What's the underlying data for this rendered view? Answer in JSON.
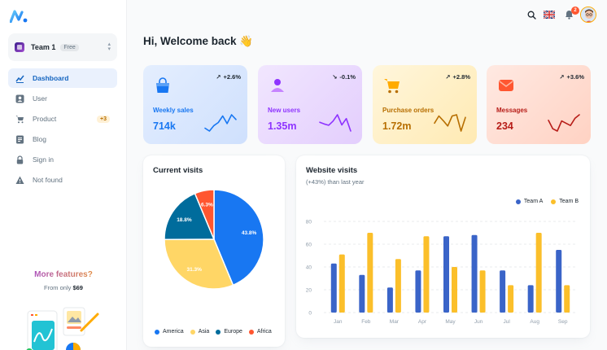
{
  "sidebar": {
    "team": {
      "name": "Team 1",
      "plan": "Free"
    },
    "items": [
      {
        "label": "Dashboard",
        "icon": "dashboard-icon",
        "active": true
      },
      {
        "label": "User",
        "icon": "user-icon"
      },
      {
        "label": "Product",
        "icon": "cart-icon",
        "badge": "+3"
      },
      {
        "label": "Blog",
        "icon": "blog-icon"
      },
      {
        "label": "Sign in",
        "icon": "lock-icon"
      },
      {
        "label": "Not found",
        "icon": "warning-icon"
      }
    ],
    "promo": {
      "title": "More features?",
      "sub_prefix": "From only",
      "price": "$69"
    }
  },
  "header": {
    "notification_count": "2"
  },
  "welcome": "Hi, Welcome back 👋",
  "stats": [
    {
      "title": "Weekly sales",
      "value": "714k",
      "trend": "+2.6%",
      "trend_dir": "up",
      "icon": "bag-icon",
      "color": "#1877f2",
      "spark": [
        22,
        8,
        35,
        50,
        82,
        45,
        88,
        65
      ]
    },
    {
      "title": "New users",
      "value": "1.35m",
      "trend": "-0.1%",
      "trend_dir": "down",
      "icon": "users-icon",
      "color": "#8e33ff",
      "spark": [
        56,
        47,
        40,
        62,
        95,
        42,
        75,
        10
      ]
    },
    {
      "title": "Purchase orders",
      "value": "1.72m",
      "trend": "+2.8%",
      "trend_dir": "up",
      "icon": "cart-icon",
      "color": "#b76e00",
      "spark": [
        40,
        70,
        50,
        28,
        70,
        75,
        7,
        64
      ]
    },
    {
      "title": "Messages",
      "value": "234",
      "trend": "+3.6%",
      "trend_dir": "up",
      "icon": "mail-icon",
      "color": "#b71d18",
      "spark": [
        56,
        30,
        23,
        54,
        47,
        40,
        62,
        73
      ]
    }
  ],
  "current_visits": {
    "title": "Current visits",
    "chart_data": {
      "type": "pie",
      "series": [
        {
          "name": "America",
          "value": 43.8,
          "label": "43.8%",
          "color": "#1877f2"
        },
        {
          "name": "Asia",
          "value": 31.3,
          "label": "31.3%",
          "color": "#ffd666"
        },
        {
          "name": "Europe",
          "value": 18.8,
          "label": "18.8%",
          "color": "#006c9c"
        },
        {
          "name": "Africa",
          "value": 6.3,
          "label": "6.3%",
          "color": "#ff5630"
        }
      ]
    }
  },
  "website_visits": {
    "title": "Website visits",
    "subtitle": "(+43%) than last year",
    "chart_data": {
      "type": "bar",
      "categories": [
        "Jan",
        "Feb",
        "Mar",
        "Apr",
        "May",
        "Jun",
        "Jul",
        "Aug",
        "Sep"
      ],
      "series": [
        {
          "name": "Team A",
          "color": "#3a64c8",
          "values": [
            43,
            33,
            22,
            37,
            67,
            68,
            37,
            24,
            55
          ]
        },
        {
          "name": "Team B",
          "color": "#fbbf2a",
          "values": [
            51,
            70,
            47,
            67,
            40,
            37,
            24,
            70,
            24
          ]
        }
      ],
      "ylim": [
        0,
        80
      ],
      "yticks": [
        "0",
        "20",
        "40",
        "60",
        "80"
      ],
      "legend": "top-right",
      "grid": true
    }
  }
}
